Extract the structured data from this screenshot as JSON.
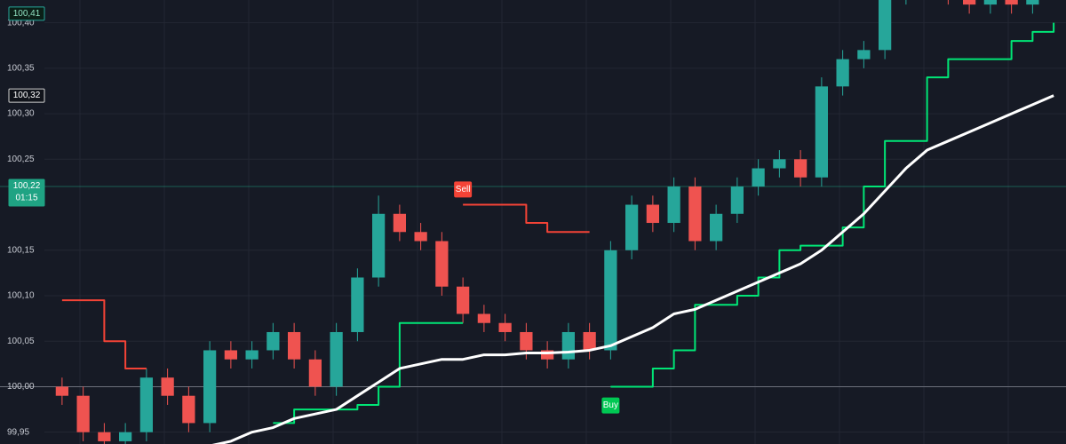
{
  "chart_data": {
    "type": "candlestick",
    "background": "#161a25",
    "grid_color": "#232733",
    "up_color": "#26a69a",
    "down_color": "#ef5350",
    "open": [
      100.0,
      99.99,
      99.95,
      99.94,
      99.95,
      100.01,
      99.99,
      99.96,
      100.04,
      100.03,
      100.04,
      100.06,
      100.03,
      100.0,
      100.06,
      100.12,
      100.19,
      100.17,
      100.16,
      100.11,
      100.08,
      100.07,
      100.06,
      100.04,
      100.03,
      100.06,
      100.04,
      100.15,
      100.2,
      100.18,
      100.22,
      100.16,
      100.19,
      100.22,
      100.24,
      100.25,
      100.23,
      100.33,
      100.36,
      100.37,
      100.43,
      100.45,
      100.44,
      100.43,
      100.42,
      100.43,
      100.42,
      100.44
    ],
    "high": [
      100.01,
      100.0,
      99.96,
      99.96,
      100.02,
      100.02,
      100.0,
      100.05,
      100.05,
      100.05,
      100.07,
      100.07,
      100.04,
      100.07,
      100.13,
      100.21,
      100.2,
      100.18,
      100.17,
      100.12,
      100.09,
      100.08,
      100.07,
      100.05,
      100.07,
      100.07,
      100.16,
      100.21,
      100.21,
      100.23,
      100.23,
      100.2,
      100.23,
      100.25,
      100.26,
      100.26,
      100.34,
      100.37,
      100.38,
      100.44,
      100.46,
      100.46,
      100.45,
      100.44,
      100.44,
      100.44,
      100.45,
      100.46
    ],
    "low": [
      99.98,
      99.94,
      99.93,
      99.93,
      99.94,
      99.98,
      99.95,
      99.95,
      100.02,
      100.02,
      100.03,
      100.02,
      99.99,
      99.99,
      100.05,
      100.11,
      100.16,
      100.15,
      100.1,
      100.07,
      100.06,
      100.05,
      100.03,
      100.02,
      100.02,
      100.03,
      100.03,
      100.14,
      100.17,
      100.17,
      100.15,
      100.15,
      100.18,
      100.21,
      100.23,
      100.22,
      100.22,
      100.32,
      100.35,
      100.36,
      100.42,
      100.43,
      100.42,
      100.41,
      100.41,
      100.41,
      100.41,
      100.43
    ],
    "close": [
      99.99,
      99.95,
      99.94,
      99.95,
      100.01,
      99.99,
      99.96,
      100.04,
      100.03,
      100.04,
      100.06,
      100.03,
      100.0,
      100.06,
      100.12,
      100.19,
      100.17,
      100.16,
      100.11,
      100.08,
      100.07,
      100.06,
      100.04,
      100.03,
      100.06,
      100.04,
      100.15,
      100.2,
      100.18,
      100.22,
      100.16,
      100.19,
      100.22,
      100.24,
      100.25,
      100.23,
      100.33,
      100.36,
      100.37,
      100.43,
      100.45,
      100.44,
      100.43,
      100.42,
      100.43,
      100.42,
      100.44,
      100.45
    ],
    "series": [
      {
        "color": "#f44336",
        "width": 2,
        "step": true,
        "values": [
          100.095,
          100.095,
          100.05,
          100.02,
          100.02,
          null,
          null,
          null,
          null,
          null,
          null,
          null,
          null,
          null,
          null,
          null,
          null,
          null,
          null,
          100.2,
          100.2,
          100.2,
          100.18,
          100.17,
          100.17,
          100.17,
          null,
          null,
          null,
          null,
          null,
          null,
          null,
          null,
          null,
          null,
          null,
          null,
          null,
          null,
          null,
          null,
          null,
          null,
          null,
          null,
          null,
          null
        ]
      },
      {
        "color": "#00e676",
        "width": 2,
        "step": true,
        "values": [
          null,
          null,
          null,
          null,
          null,
          null,
          null,
          null,
          null,
          null,
          99.96,
          99.975,
          99.975,
          99.975,
          99.98,
          100.0,
          100.07,
          100.07,
          100.07,
          100.07,
          null,
          null,
          null,
          null,
          null,
          null,
          100.0,
          100.0,
          100.02,
          100.04,
          100.09,
          100.09,
          100.1,
          100.12,
          100.15,
          100.155,
          100.155,
          100.175,
          100.22,
          100.27,
          100.27,
          100.34,
          100.36,
          100.36,
          100.36,
          100.38,
          100.39,
          100.4
        ]
      },
      {
        "color": "#ffffff",
        "width": 3,
        "step": false,
        "values": [
          null,
          null,
          null,
          null,
          null,
          null,
          99.93,
          99.935,
          99.94,
          99.95,
          99.955,
          99.965,
          99.97,
          99.975,
          99.99,
          100.005,
          100.02,
          100.025,
          100.03,
          100.03,
          100.035,
          100.035,
          100.037,
          100.037,
          100.038,
          100.04,
          100.045,
          100.055,
          100.065,
          100.08,
          100.085,
          100.095,
          100.105,
          100.115,
          100.125,
          100.135,
          100.15,
          100.17,
          100.19,
          100.215,
          100.24,
          100.26,
          100.27,
          100.28,
          100.29,
          100.3,
          100.31,
          100.32
        ]
      }
    ],
    "ylim": [
      99.937,
      100.425
    ],
    "yticks": [
      {
        "value": 99.95,
        "label": "99,95"
      },
      {
        "value": 100.0,
        "label": "100,00"
      },
      {
        "value": 100.05,
        "label": "100,05"
      },
      {
        "value": 100.1,
        "label": "100,10"
      },
      {
        "value": 100.15,
        "label": "100,15"
      },
      {
        "value": 100.25,
        "label": "100,25"
      },
      {
        "value": 100.3,
        "label": "100,30"
      },
      {
        "value": 100.35,
        "label": "100,35"
      },
      {
        "value": 100.4,
        "label": "100,40"
      }
    ],
    "hlines": [
      {
        "value": 100.0,
        "color": "#6b6f7a"
      }
    ],
    "price_labels": [
      {
        "value": 100.41,
        "label": "100,41",
        "fill": "#0b1f17",
        "border": "#26a69a",
        "text_color": "#8fe0c0",
        "line": false
      },
      {
        "value": 100.32,
        "label": "100,32",
        "fill": "#10131a",
        "border": "#d0d0d0",
        "text_color": "#ffffff",
        "line": false
      },
      {
        "value": 100.22,
        "label": "100,22",
        "sublabel": "01:15",
        "fill": "#1fa383",
        "border": "#1fa383",
        "text_color": "#ffffff",
        "line": true
      }
    ],
    "markers": [
      {
        "text": "Sell",
        "at": 19,
        "value": 100.205,
        "color": "#f44336",
        "side": "above"
      },
      {
        "text": "Buy",
        "at": 26,
        "value": 99.995,
        "color": "#00c853",
        "side": "below"
      }
    ]
  }
}
